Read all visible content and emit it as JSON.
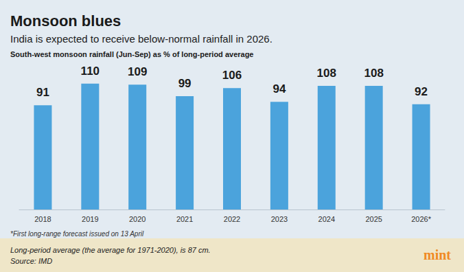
{
  "chart_data": {
    "type": "bar",
    "title": "Monsoon blues",
    "subtitle": "India is expected to receive below-normal rainfall in 2026.",
    "ylabel": "South-west monsoon rainfall (Jun-Sep) as % of long-period average",
    "categories": [
      "2018",
      "2019",
      "2020",
      "2021",
      "2022",
      "2023",
      "2024",
      "2025",
      "2026*"
    ],
    "values": [
      91,
      110,
      109,
      99,
      106,
      94,
      108,
      108,
      92
    ],
    "color": "#4ba3dc",
    "ylim": [
      0,
      120
    ],
    "yticks": [
      0,
      40,
      80,
      120
    ],
    "grid": false,
    "data_labels": true,
    "tick_labels": "x",
    "annotations": [
      "*First long-range forecast issued on 13 April",
      "Long-period average (the average for 1971-2020), is 87 cm.",
      "Source: IMD",
      "mint"
    ]
  }
}
